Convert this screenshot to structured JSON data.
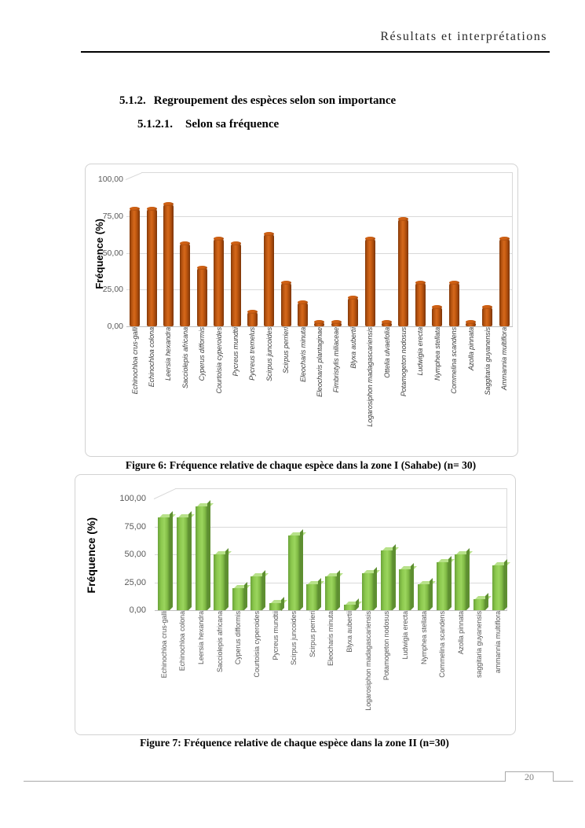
{
  "page": {
    "header": {
      "title": "Résultats et interprétations"
    },
    "headings": {
      "section_number": "5.1.2.",
      "section_title": "Regroupement des espèces selon son importance",
      "subsection_number": "5.1.2.1.",
      "subsection_title": "Selon sa fréquence"
    },
    "captions": {
      "figure6": "Figure 6: Fréquence relative de chaque espèce dans la zone I (Sahabe) (n= 30)",
      "figure7": "Figure 7: Fréquence relative de chaque espèce dans la zone II (n=30)"
    },
    "footer": {
      "page_number": "20"
    }
  },
  "chart_data": [
    {
      "type": "bar",
      "figure_ref": "Figure 6",
      "ylabel": "Fréquence (%)",
      "ylim": [
        0,
        100
      ],
      "yticks": [
        "100,00",
        "75,00",
        "50,00",
        "25,00",
        "0,00"
      ],
      "grid": true,
      "legend": "none",
      "bar_color": "#C55A11",
      "bar_style": "3d-cylinder",
      "categories": [
        "Echinochloa crus-galli",
        "Echinochloa colona",
        "Leersia hexandra",
        "Sacciolepis africana",
        "Cyperus difformis",
        "Courtoisia cyperoides",
        "Pycreus mundtii",
        "Pycreus tremelus",
        "Scirpus juncoides",
        "Scirpus perrieri",
        "Eleocharis minuta",
        "Eleocharis plantaginae",
        "Fimbristylis miliaceae",
        "Blyxa aubertii",
        "Logarosiphon madagascariensis",
        "Ottelia ulvaefolia",
        "Potamogeton nodosus",
        "Ludwigia erecta",
        "Nymphea stellata",
        "Commelina scandens",
        "Azolla pinnata",
        "Saggitaria guyanensis",
        "Ammannia multiflora"
      ],
      "values": [
        80,
        80,
        83.3,
        56.7,
        40,
        60,
        56.7,
        10,
        63.3,
        30,
        16.7,
        3.3,
        3.3,
        20,
        60,
        3.3,
        73.3,
        30,
        13.3,
        30,
        3.3,
        13.3,
        60
      ]
    },
    {
      "type": "bar",
      "figure_ref": "Figure 7",
      "ylabel": "Fréquence (%)",
      "ylim": [
        0,
        100
      ],
      "yticks": [
        "100,00",
        "75,00",
        "50,00",
        "25,00",
        "0,00"
      ],
      "grid": true,
      "legend": "none",
      "bar_color": "#92D050",
      "bar_style": "3d-box",
      "categories": [
        "Echinochloa crus-galli",
        "Echinochloa colona",
        "Leersia hexandra",
        "Sacciolepis africana",
        "Cyperus difformis",
        "Courtoisia cyperoides",
        "Pycreus mundtii",
        "Scirpus juncoides",
        "Scirpus perrieri",
        "Eleocharis minuta",
        "Blyxa aubertii",
        "Logarosiphon madagascariensis",
        "Potamogeton nodosus",
        "Ludwigia erecta",
        "Nymphea stellata",
        "Commelina scandens",
        "Azolla pinnata",
        "saggitaria guyanensis",
        "ammannia multiflora"
      ],
      "values": [
        83.3,
        83.3,
        93.3,
        50,
        20,
        30,
        6.7,
        66.7,
        23.3,
        30,
        5,
        33.3,
        53.3,
        36.7,
        23.3,
        43.3,
        50,
        10,
        40
      ]
    }
  ]
}
